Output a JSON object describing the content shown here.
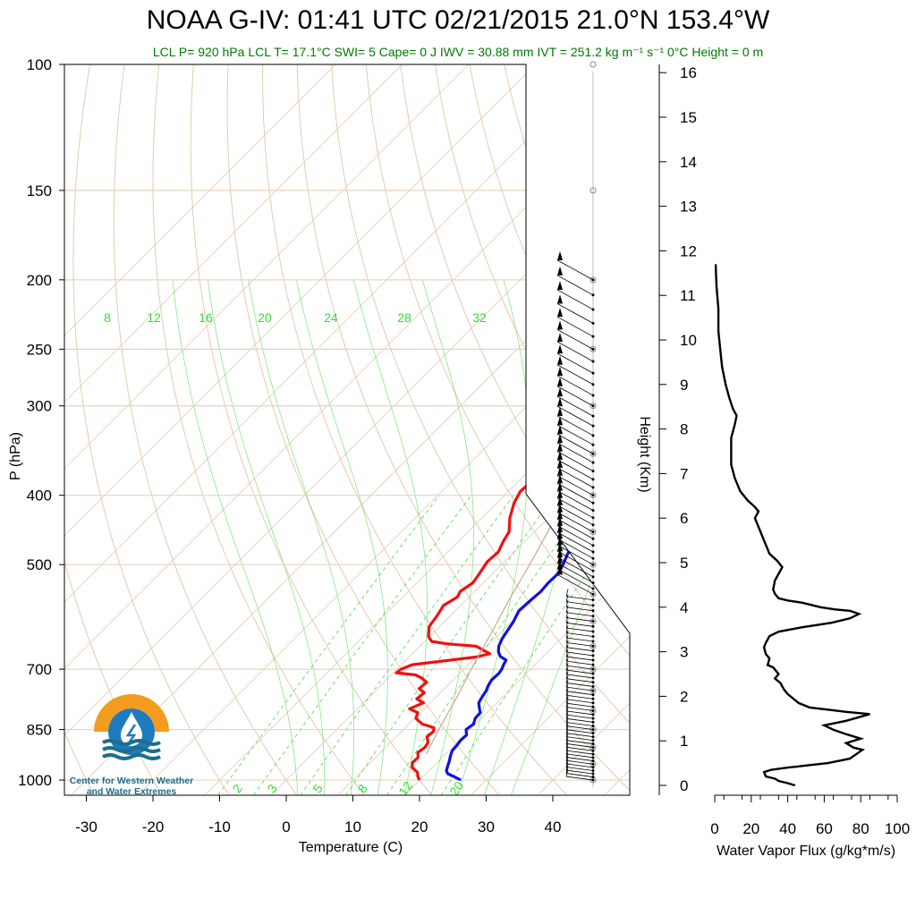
{
  "title": "NOAA G-IV: 01:41 UTC 02/21/2015  21.0°N 153.4°W",
  "subtitle": "LCL P= 920 hPa  LCL T= 17.1°C  SWI= 5  Cape= 0 J  IWV = 30.88 mm  IVT = 251.2 kg m⁻¹ s⁻¹  0°C Height = 0 m",
  "logo": {
    "text_line1": "Center for Western Weather",
    "text_line2": "and Water Extremes",
    "colors": {
      "orange": "#f39c1e",
      "blue": "#1f7bbf",
      "teal": "#1b6f8a"
    }
  },
  "colors": {
    "temperature": "#ee1111",
    "dewpoint": "#1111dd",
    "isotherm": "#e5d4bf",
    "dry_adiabat": "#e2cbb0",
    "mixing_ratio": "#55dd55",
    "parcel": "#caa889",
    "flux": "#000000"
  },
  "chart_data": [
    {
      "type": "line",
      "title": "Skew-T log-P",
      "xlabel": "Temperature (C)",
      "ylabel": "P (hPa)",
      "x_ticks": [
        -30,
        -20,
        -10,
        0,
        10,
        20,
        30,
        40
      ],
      "x_tick_labels": [
        "-30",
        "-20",
        "-10",
        "0",
        "10",
        "20",
        "30",
        "40"
      ],
      "y_ticks": [
        100,
        150,
        200,
        250,
        300,
        400,
        500,
        700,
        850,
        1000
      ],
      "y_tick_labels": [
        "100",
        "150",
        "200",
        "250",
        "300",
        "400",
        "500",
        "700",
        "850",
        "1000"
      ],
      "xlim": [
        -34,
        47
      ],
      "ylim": [
        1050,
        100
      ],
      "y_scale": "log",
      "mixing_ratio_top_labels": [
        "8",
        "12",
        "16",
        "20",
        "24",
        "28",
        "32"
      ],
      "mixing_ratio_bottom_labels": [
        "2",
        "3",
        "5",
        "8",
        "12",
        "20"
      ],
      "series": [
        {
          "name": "Temperature",
          "points": [
            [
              20.0,
              1000
            ],
            [
              19.3,
              990
            ],
            [
              18.5,
              975
            ],
            [
              17.0,
              960
            ],
            [
              16.3,
              945
            ],
            [
              16.4,
              930
            ],
            [
              15.6,
              915
            ],
            [
              15.9,
              900
            ],
            [
              15.6,
              885
            ],
            [
              14.6,
              870
            ],
            [
              14.8,
              855
            ],
            [
              14.3,
              845
            ],
            [
              12.0,
              835
            ],
            [
              10.2,
              820
            ],
            [
              9.6,
              805
            ],
            [
              7.8,
              795
            ],
            [
              9.0,
              780
            ],
            [
              7.4,
              770
            ],
            [
              7.6,
              755
            ],
            [
              6.2,
              745
            ],
            [
              6.4,
              730
            ],
            [
              5.0,
              720
            ],
            [
              3.6,
              713
            ],
            [
              0.4,
              708
            ],
            [
              0.6,
              700
            ],
            [
              1.6,
              690
            ],
            [
              6.6,
              680
            ],
            [
              10.0,
              673
            ],
            [
              11.6,
              666
            ],
            [
              10.2,
              659
            ],
            [
              8.4,
              650
            ],
            [
              3.6,
              645
            ],
            [
              1.0,
              640
            ],
            [
              -0.2,
              630
            ],
            [
              -1.6,
              610
            ],
            [
              -2.0,
              590
            ],
            [
              -2.6,
              570
            ],
            [
              -1.8,
              555
            ],
            [
              -2.2,
              545
            ],
            [
              -1.6,
              530
            ],
            [
              -2.0,
              515
            ],
            [
              -2.6,
              495
            ],
            [
              -2.4,
              480
            ],
            [
              -3.2,
              465
            ],
            [
              -3.8,
              450
            ],
            [
              -5.8,
              430
            ],
            [
              -7.4,
              410
            ],
            [
              -8.2,
              395
            ],
            [
              -8.0,
              380
            ],
            [
              -8.4,
              360
            ],
            [
              -8.0,
              345
            ],
            [
              -7.0,
              335
            ],
            [
              -7.8,
              325
            ],
            [
              -9.0,
              318
            ],
            [
              -11.4,
              300
            ],
            [
              -13.0,
              280
            ],
            [
              -14.8,
              265
            ],
            [
              -15.2,
              255
            ],
            [
              -15.0,
              245
            ],
            [
              -15.2,
              235
            ],
            [
              -16.0,
              225
            ],
            [
              -17.0,
              215
            ],
            [
              -18.2,
              205
            ],
            [
              -19.2,
              200
            ]
          ]
        },
        {
          "name": "Dewpoint",
          "points": [
            [
              26.2,
              1000
            ],
            [
              24.8,
              990
            ],
            [
              23.3,
              980
            ],
            [
              22.6,
              970
            ],
            [
              22.1,
              955
            ],
            [
              21.6,
              940
            ],
            [
              21.0,
              925
            ],
            [
              20.5,
              910
            ],
            [
              20.4,
              895
            ],
            [
              20.2,
              880
            ],
            [
              20.3,
              865
            ],
            [
              19.4,
              850
            ],
            [
              19.7,
              835
            ],
            [
              19.1,
              820
            ],
            [
              19.0,
              805
            ],
            [
              18.3,
              795
            ],
            [
              17.3,
              780
            ],
            [
              16.9,
              765
            ],
            [
              16.6,
              750
            ],
            [
              16.2,
              740
            ],
            [
              15.8,
              725
            ],
            [
              15.9,
              710
            ],
            [
              15.7,
              700
            ],
            [
              15.3,
              690
            ],
            [
              15.0,
              680
            ],
            [
              13.6,
              672
            ],
            [
              12.6,
              662
            ],
            [
              11.8,
              650
            ],
            [
              11.2,
              635
            ],
            [
              10.8,
              620
            ],
            [
              10.3,
              600
            ],
            [
              9.5,
              580
            ],
            [
              9.7,
              560
            ],
            [
              9.9,
              545
            ],
            [
              9.7,
              530
            ],
            [
              9.8,
              515
            ],
            [
              9.2,
              500
            ],
            [
              8.4,
              485
            ],
            [
              7.6,
              470
            ],
            [
              6.6,
              455
            ],
            [
              5.8,
              440
            ],
            [
              4.6,
              425
            ],
            [
              3.8,
              410
            ],
            [
              2.4,
              395
            ],
            [
              1.2,
              380
            ],
            [
              0.8,
              365
            ],
            [
              -0.4,
              350
            ],
            [
              -1.2,
              335
            ],
            [
              -1.6,
              320
            ],
            [
              -2.6,
              305
            ],
            [
              -3.2,
              290
            ],
            [
              -4.0,
              277
            ],
            [
              -4.6,
              265
            ],
            [
              -4.0,
              257
            ],
            [
              -3.0,
              250
            ],
            [
              -2.6,
              243
            ],
            [
              -2.6,
              233
            ],
            [
              -3.2,
              222
            ],
            [
              -4.2,
              212
            ],
            [
              -5.0,
              203
            ]
          ]
        },
        {
          "name": "Parcel",
          "points": [
            [
              17.1,
              920
            ],
            [
              15.3,
              850
            ],
            [
              13.0,
              760
            ],
            [
              10.8,
              690
            ],
            [
              8.6,
              620
            ],
            [
              6.4,
              560
            ],
            [
              4.2,
              500
            ],
            [
              2.0,
              450
            ],
            [
              -0.4,
              400
            ],
            [
              -3.0,
              360
            ],
            [
              -5.8,
              320
            ],
            [
              -8.6,
              285
            ],
            [
              -11.4,
              260
            ],
            [
              -14.2,
              240
            ],
            [
              -17.2,
              222
            ]
          ]
        }
      ]
    },
    {
      "type": "line",
      "title": "Water Vapor Flux profile",
      "xlabel": "Water Vapor Flux (g/kg*m/s)",
      "ylabel": "Height (Km)",
      "xlim": [
        0,
        100
      ],
      "ylim": [
        -0.2,
        16.3
      ],
      "x_ticks": [
        0,
        20,
        40,
        60,
        80,
        100
      ],
      "x_tick_labels": [
        "0",
        "20",
        "40",
        "60",
        "80",
        "100"
      ],
      "y_ticks": [
        0,
        1,
        2,
        3,
        4,
        5,
        6,
        7,
        8,
        9,
        10,
        11,
        12,
        13,
        14,
        15,
        16
      ],
      "y_tick_labels": [
        "0",
        "1",
        "2",
        "3",
        "4",
        "5",
        "6",
        "7",
        "8",
        "9",
        "10",
        "11",
        "12",
        "13",
        "14",
        "15",
        "16"
      ],
      "series": [
        {
          "name": "Water Vapor Flux",
          "points": [
            [
              44,
              0.0
            ],
            [
              40,
              0.05
            ],
            [
              35,
              0.1
            ],
            [
              33,
              0.15
            ],
            [
              28,
              0.2
            ],
            [
              27,
              0.3
            ],
            [
              31,
              0.35
            ],
            [
              40,
              0.4
            ],
            [
              51,
              0.45
            ],
            [
              62,
              0.5
            ],
            [
              74,
              0.6
            ],
            [
              81,
              0.8
            ],
            [
              76,
              0.85
            ],
            [
              72,
              0.95
            ],
            [
              80,
              1.05
            ],
            [
              72,
              1.15
            ],
            [
              65,
              1.25
            ],
            [
              60,
              1.35
            ],
            [
              72,
              1.45
            ],
            [
              85,
              1.6
            ],
            [
              72,
              1.65
            ],
            [
              62,
              1.7
            ],
            [
              52,
              1.75
            ],
            [
              46,
              1.85
            ],
            [
              43,
              1.95
            ],
            [
              40,
              2.05
            ],
            [
              38,
              2.15
            ],
            [
              36,
              2.3
            ],
            [
              33,
              2.4
            ],
            [
              35,
              2.5
            ],
            [
              32,
              2.65
            ],
            [
              29,
              2.7
            ],
            [
              30,
              2.85
            ],
            [
              28,
              2.95
            ],
            [
              27,
              3.1
            ],
            [
              28,
              3.2
            ],
            [
              30,
              3.35
            ],
            [
              35,
              3.45
            ],
            [
              48,
              3.55
            ],
            [
              64,
              3.65
            ],
            [
              74,
              3.75
            ],
            [
              79,
              3.85
            ],
            [
              74,
              3.92
            ],
            [
              66,
              3.95
            ],
            [
              58,
              4.0
            ],
            [
              48,
              4.1
            ],
            [
              40,
              4.15
            ],
            [
              35,
              4.2
            ],
            [
              33,
              4.3
            ],
            [
              32,
              4.4
            ],
            [
              33,
              4.6
            ],
            [
              35,
              4.75
            ],
            [
              37,
              4.9
            ],
            [
              34,
              5.05
            ],
            [
              30,
              5.2
            ],
            [
              28,
              5.4
            ],
            [
              26,
              5.6
            ],
            [
              24,
              5.8
            ],
            [
              22,
              6.0
            ],
            [
              24,
              6.15
            ],
            [
              22,
              6.25
            ],
            [
              18,
              6.4
            ],
            [
              14,
              6.6
            ],
            [
              11,
              6.9
            ],
            [
              9,
              7.2
            ],
            [
              9,
              7.5
            ],
            [
              9,
              7.8
            ],
            [
              11,
              8.1
            ],
            [
              12,
              8.3
            ],
            [
              10,
              8.45
            ],
            [
              8,
              8.7
            ],
            [
              6,
              9.0
            ],
            [
              4,
              9.4
            ],
            [
              3,
              9.8
            ],
            [
              2,
              10.2
            ],
            [
              2,
              10.7
            ],
            [
              1,
              11.2
            ],
            [
              0.5,
              11.7
            ]
          ]
        }
      ]
    }
  ]
}
